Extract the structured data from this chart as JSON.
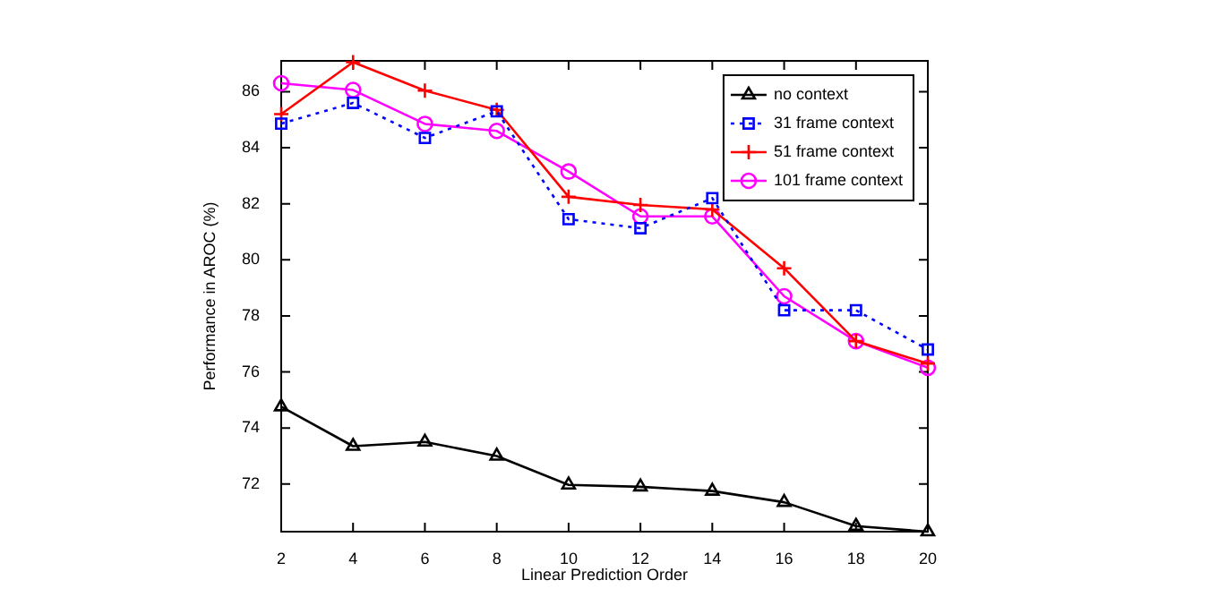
{
  "chart_data": {
    "type": "line",
    "xlabel": "Linear Prediction Order",
    "ylabel": "Performance in AROC (%)",
    "x": [
      2,
      4,
      6,
      8,
      10,
      12,
      14,
      16,
      18,
      20
    ],
    "xlim": [
      2,
      20
    ],
    "xticks": [
      2,
      4,
      6,
      8,
      10,
      12,
      14,
      16,
      18,
      20
    ],
    "ylim": [
      70.3,
      87.1
    ],
    "yticks": [
      72,
      74,
      76,
      78,
      80,
      82,
      84,
      86
    ],
    "grid": false,
    "legend": "top right",
    "series": [
      {
        "name": "no context",
        "color": "#000000",
        "marker": "triangle",
        "line_style": "solid",
        "values": [
          74.76,
          73.35,
          73.5,
          73.0,
          71.97,
          71.9,
          71.75,
          71.35,
          70.5,
          70.3
        ]
      },
      {
        "name": "31 frame context",
        "color": "#0000ff",
        "marker": "square",
        "line_style": "dotted",
        "values": [
          84.86,
          85.6,
          84.35,
          85.3,
          81.45,
          81.13,
          82.2,
          78.2,
          78.2,
          76.8
        ]
      },
      {
        "name": "51 frame context",
        "color": "#ff0000",
        "marker": "cross",
        "line_style": "solid",
        "values": [
          85.2,
          87.05,
          86.04,
          85.35,
          82.25,
          81.96,
          81.8,
          79.7,
          77.1,
          76.3
        ]
      },
      {
        "name": "101 frame context",
        "color": "#ff00ff",
        "marker": "circle",
        "line_style": "solid",
        "values": [
          86.3,
          86.06,
          84.85,
          84.6,
          83.15,
          81.55,
          81.55,
          78.7,
          77.1,
          76.15
        ]
      }
    ]
  }
}
